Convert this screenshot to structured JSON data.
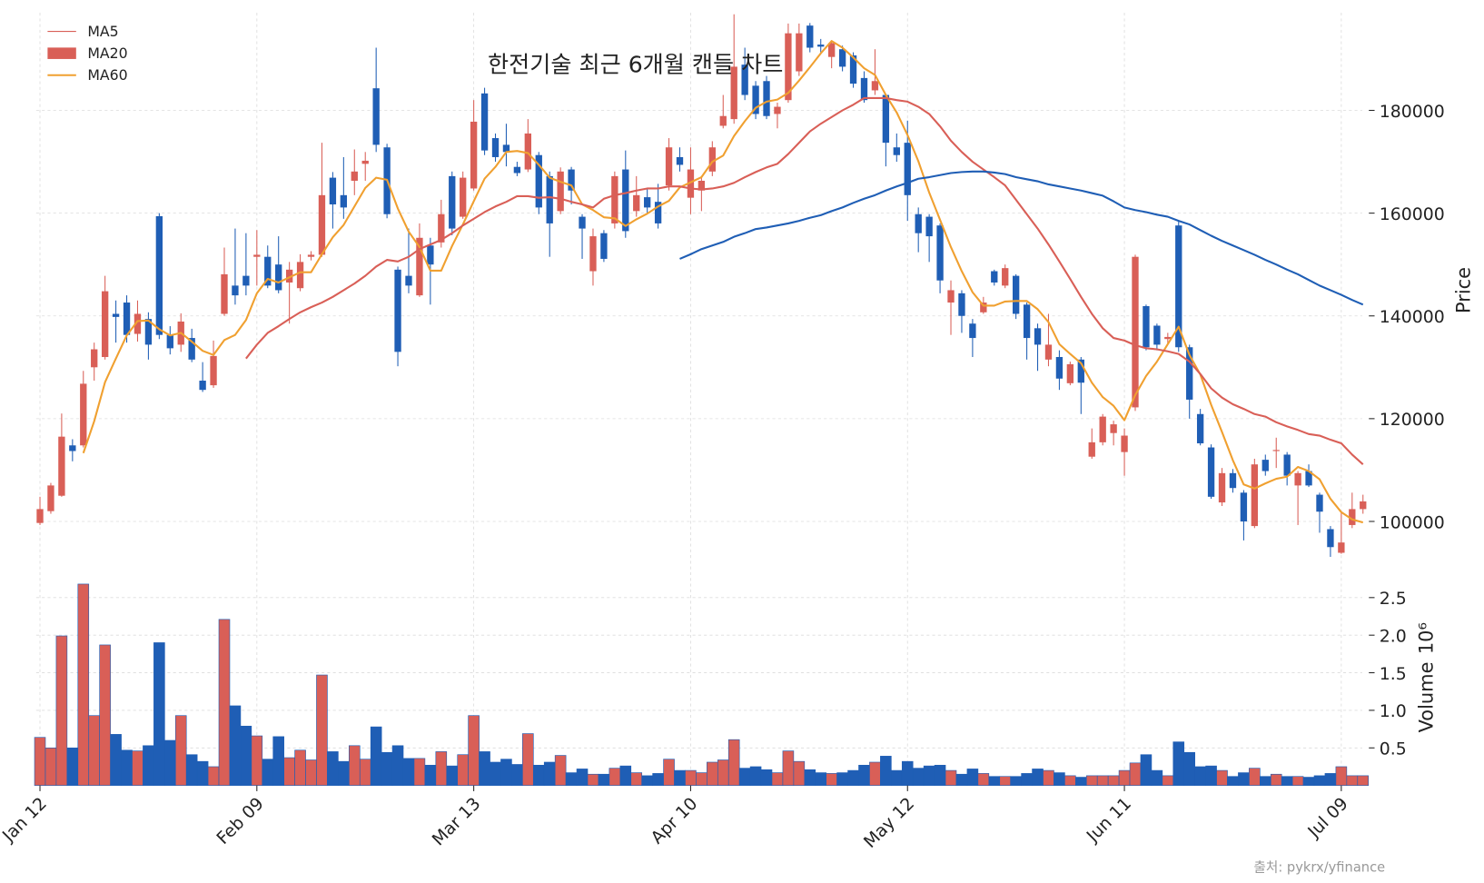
{
  "chart_data": {
    "type": "candlestick",
    "title": "한전기술 최근 6개월 캔들 차트",
    "source_note": "출처: pykrx/yfinance",
    "categories": [
      "Jan 12",
      null,
      null,
      null,
      null,
      null,
      null,
      null,
      null,
      null,
      null,
      null,
      null,
      null,
      null,
      null,
      null,
      null,
      null,
      null,
      "Feb 09",
      null,
      null,
      null,
      null,
      null,
      null,
      null,
      null,
      null,
      null,
      null,
      null,
      null,
      null,
      null,
      null,
      null,
      null,
      null,
      "Mar 13",
      null,
      null,
      null,
      null,
      null,
      null,
      null,
      null,
      null,
      null,
      null,
      null,
      null,
      null,
      null,
      null,
      null,
      null,
      null,
      "Apr 10",
      null,
      null,
      null,
      null,
      null,
      null,
      null,
      null,
      null,
      null,
      null,
      null,
      null,
      null,
      null,
      null,
      null,
      null,
      null,
      "May 12",
      null,
      null,
      null,
      null,
      null,
      null,
      null,
      null,
      null,
      null,
      null,
      null,
      null,
      null,
      null,
      null,
      null,
      null,
      null,
      "Jun 11",
      null,
      null,
      null,
      null,
      null,
      null,
      null,
      null,
      null,
      null,
      null,
      null,
      null,
      null,
      null,
      null,
      null,
      null,
      null,
      "Jul 09",
      null,
      null
    ],
    "open": [
      99700,
      102000,
      105000,
      114800,
      114800,
      130000,
      132000,
      140400,
      142600,
      136500,
      139400,
      159400,
      136300,
      134400,
      135700,
      127400,
      126500,
      140400,
      145900,
      147800,
      151500,
      151500,
      150000,
      146500,
      145400,
      151500,
      151900,
      166900,
      163500,
      166300,
      169600,
      184300,
      172800,
      149000,
      147800,
      144000,
      153700,
      154300,
      167200,
      159300,
      164800,
      183300,
      174600,
      173300,
      169000,
      168500,
      171300,
      167200,
      160400,
      168500,
      159300,
      148700,
      156100,
      158000,
      168500,
      160400,
      163100,
      162200,
      165400,
      170900,
      163000,
      164400,
      168100,
      177000,
      178300,
      188900,
      184800,
      185700,
      179300,
      182000,
      187600,
      196500,
      192800,
      190400,
      191900,
      190700,
      186300,
      183900,
      183000,
      172800,
      173700,
      159800,
      159300,
      157600,
      142600,
      144400,
      138500,
      140700,
      148700,
      145900,
      147800,
      142200,
      137600,
      131500,
      132000,
      126900,
      131500,
      112600,
      115400,
      117200,
      113500,
      122200,
      141900,
      138100,
      135500,
      157600,
      133900,
      120900,
      114400,
      103700,
      109400,
      105600,
      99100,
      112000,
      113700,
      113000,
      107000,
      109800,
      105200,
      98500,
      93900,
      99300,
      102400
    ],
    "high": [
      104800,
      107500,
      121000,
      116000,
      129300,
      134800,
      147800,
      143000,
      144000,
      143000,
      140700,
      160000,
      138000,
      140500,
      137500,
      131000,
      135200,
      153300,
      157000,
      156100,
      156700,
      153700,
      155500,
      150500,
      152000,
      152600,
      173700,
      168000,
      170900,
      172400,
      171900,
      192200,
      173500,
      149600,
      157000,
      158000,
      155200,
      162600,
      168100,
      168100,
      182000,
      184400,
      175500,
      177400,
      170000,
      178300,
      171900,
      168100,
      168900,
      169000,
      159800,
      157000,
      156700,
      168100,
      172200,
      167200,
      164800,
      165700,
      174600,
      172800,
      172800,
      167200,
      174000,
      183000,
      198700,
      192200,
      185700,
      186700,
      181500,
      196900,
      196900,
      197000,
      193900,
      193500,
      192600,
      191300,
      187600,
      191900,
      183000,
      175500,
      178000,
      161100,
      159800,
      158000,
      146900,
      145000,
      139400,
      143700,
      149000,
      150000,
      148100,
      142600,
      138500,
      140400,
      133300,
      131100,
      132000,
      118100,
      120900,
      119600,
      118100,
      151900,
      142200,
      138500,
      136700,
      158500,
      134400,
      121900,
      115000,
      110400,
      110200,
      106100,
      112200,
      113000,
      116300,
      113500,
      109800,
      111100,
      105600,
      99100,
      101900,
      105600,
      105200
    ],
    "low": [
      99300,
      101500,
      104800,
      111700,
      114400,
      127400,
      131500,
      134800,
      134800,
      135000,
      131500,
      135500,
      132500,
      133000,
      131000,
      125200,
      126000,
      140000,
      142200,
      144000,
      145900,
      145400,
      144400,
      138500,
      144800,
      150800,
      151500,
      157000,
      158900,
      163500,
      166300,
      171900,
      159000,
      130200,
      144400,
      143700,
      142200,
      153300,
      155700,
      158900,
      164400,
      171300,
      170000,
      169100,
      167200,
      168000,
      159800,
      151500,
      159800,
      161700,
      151100,
      145900,
      150500,
      157000,
      155200,
      159300,
      159800,
      157000,
      164400,
      168100,
      159800,
      160400,
      167200,
      176500,
      177400,
      182000,
      178300,
      178300,
      176500,
      181500,
      186700,
      191300,
      191300,
      188200,
      187600,
      184400,
      181500,
      183000,
      169100,
      170000,
      158500,
      152400,
      150500,
      144400,
      136300,
      136700,
      132000,
      140400,
      145900,
      145400,
      139400,
      131500,
      129300,
      130200,
      125600,
      126500,
      120900,
      112200,
      114800,
      114800,
      108900,
      121500,
      133300,
      133300,
      134400,
      133000,
      120000,
      114800,
      104400,
      103000,
      105600,
      96300,
      98700,
      108900,
      110400,
      107000,
      99300,
      106700,
      97800,
      93100,
      93700,
      98700,
      101500
    ],
    "close": [
      102400,
      107000,
      116500,
      113700,
      126800,
      133500,
      144800,
      139800,
      136300,
      140400,
      134400,
      136300,
      133700,
      138900,
      131500,
      125600,
      132200,
      148100,
      144000,
      145900,
      151900,
      145900,
      145000,
      149000,
      150500,
      151900,
      163500,
      161700,
      161100,
      168100,
      170200,
      173300,
      159800,
      133000,
      145900,
      155200,
      150000,
      159800,
      157000,
      166900,
      177800,
      172200,
      170900,
      171900,
      167800,
      175500,
      161100,
      158000,
      168100,
      164400,
      157000,
      155500,
      151100,
      167200,
      156500,
      163500,
      161100,
      158000,
      172800,
      169400,
      168500,
      166300,
      172800,
      178900,
      188500,
      183000,
      179300,
      178900,
      180700,
      195000,
      195000,
      192200,
      192400,
      193100,
      188500,
      185200,
      182000,
      185700,
      173700,
      171300,
      163500,
      156100,
      155500,
      146900,
      145000,
      140000,
      135700,
      142600,
      146500,
      149300,
      140400,
      135700,
      134400,
      134400,
      127800,
      130600,
      127000,
      115400,
      120400,
      118900,
      116700,
      151500,
      133900,
      134400,
      135900,
      133900,
      123700,
      115200,
      104800,
      109400,
      106500,
      100000,
      111100,
      109800,
      113900,
      108900,
      109400,
      107000,
      101900,
      95000,
      95900,
      102400,
      103900
    ],
    "up_color": "#d95f57",
    "down_color": "#1f5eb5",
    "ylabel": "Price",
    "ylim": [
      92000,
      199000
    ],
    "yticks": [
      100000,
      120000,
      140000,
      160000,
      180000
    ],
    "grid": true,
    "legend": "upper left",
    "series": [
      {
        "name": "MA5",
        "color": "#f0a030",
        "legend_color": "#d95f57",
        "legend_mark": "line",
        "width": 2,
        "values": [
          null,
          null,
          null,
          null,
          113300,
          119500,
          127100,
          131700,
          136200,
          139000,
          139100,
          137400,
          136200,
          136700,
          135000,
          133200,
          132400,
          135300,
          136300,
          139200,
          144400,
          147200,
          146500,
          147500,
          148500,
          148500,
          152000,
          155300,
          157700,
          161300,
          164900,
          166900,
          166500,
          160900,
          156400,
          153400,
          148800,
          148800,
          153600,
          157800,
          162300,
          166700,
          169000,
          171900,
          172100,
          171700,
          169400,
          166900,
          166100,
          165400,
          161700,
          160600,
          159200,
          159000,
          157500,
          158800,
          159900,
          161300,
          162400,
          165000,
          166000,
          167000,
          170000,
          171200,
          175000,
          177900,
          180500,
          181700,
          182100,
          183400,
          185800,
          188400,
          191100,
          193500,
          192200,
          190300,
          188200,
          186900,
          183000,
          179600,
          175200,
          170100,
          164000,
          158700,
          153400,
          148700,
          144600,
          142000,
          142000,
          142800,
          142900,
          142900,
          141300,
          138800,
          134500,
          132600,
          130800,
          127000,
          124200,
          122500,
          119700,
          124600,
          128300,
          131100,
          134500,
          137900,
          132400,
          128600,
          122700,
          117400,
          111900,
          107200,
          106400,
          107400,
          108300,
          108700,
          110600,
          109800,
          108200,
          104400,
          101800,
          100400,
          99800
        ]
      },
      {
        "name": "MA20",
        "color": "#d95f57",
        "legend_color": "#d95f57",
        "legend_mark": "patch",
        "width": 2,
        "values": [
          null,
          null,
          null,
          null,
          null,
          null,
          null,
          null,
          null,
          null,
          null,
          null,
          null,
          null,
          null,
          null,
          null,
          null,
          null,
          131700,
          134400,
          136700,
          138000,
          139400,
          140700,
          141700,
          142600,
          143700,
          145000,
          146300,
          147800,
          149600,
          150900,
          150600,
          151500,
          153000,
          153900,
          154800,
          156100,
          157600,
          158900,
          160200,
          161300,
          162200,
          163300,
          163300,
          163000,
          163100,
          162800,
          162200,
          161700,
          161100,
          162800,
          163500,
          163900,
          164400,
          164800,
          164800,
          165200,
          165200,
          164800,
          164600,
          164800,
          165200,
          165900,
          167000,
          168000,
          168900,
          169600,
          171500,
          173700,
          175900,
          177400,
          178700,
          180000,
          181100,
          182400,
          182400,
          182400,
          182000,
          181700,
          180700,
          179300,
          176900,
          174100,
          171900,
          170000,
          168500,
          167000,
          165400,
          162600,
          159800,
          157000,
          153900,
          150600,
          147200,
          143700,
          140400,
          137600,
          135700,
          135200,
          134300,
          133700,
          133500,
          133100,
          132600,
          131100,
          128700,
          125900,
          124100,
          122800,
          121900,
          120900,
          120400,
          119300,
          118500,
          117800,
          117000,
          116700,
          115900,
          115200,
          113000,
          111100
        ]
      },
      {
        "name": "MA60",
        "color": "#1f5eb5",
        "legend_color": "#f0a030",
        "legend_mark": "line",
        "width": 2,
        "values": [
          null,
          null,
          null,
          null,
          null,
          null,
          null,
          null,
          null,
          null,
          null,
          null,
          null,
          null,
          null,
          null,
          null,
          null,
          null,
          null,
          null,
          null,
          null,
          null,
          null,
          null,
          null,
          null,
          null,
          null,
          null,
          null,
          null,
          null,
          null,
          null,
          null,
          null,
          null,
          null,
          null,
          null,
          null,
          null,
          null,
          null,
          null,
          null,
          null,
          null,
          null,
          null,
          null,
          null,
          null,
          null,
          null,
          null,
          null,
          151100,
          152000,
          153000,
          153700,
          154400,
          155400,
          156100,
          156900,
          157200,
          157600,
          158000,
          158500,
          159100,
          159600,
          160400,
          161100,
          162000,
          162800,
          163500,
          164400,
          165200,
          165900,
          166700,
          167000,
          167400,
          167800,
          168000,
          168100,
          168100,
          167900,
          167600,
          167000,
          166600,
          166200,
          165600,
          165200,
          164800,
          164400,
          163900,
          163400,
          162300,
          161100,
          160600,
          160200,
          159700,
          159300,
          158500,
          157800,
          156700,
          155600,
          154600,
          153700,
          152800,
          151900,
          150900,
          150000,
          149000,
          148100,
          147000,
          145900,
          145000,
          144100,
          143100,
          142200
        ]
      }
    ],
    "volume": {
      "label": "Volume",
      "multiplier": "10⁶",
      "ylim": [
        0,
        2.75
      ],
      "yticks": [
        0.5,
        {
          "value": 1,
          "label": "1.0"
        },
        1.5,
        {
          "value": 2,
          "label": "2.0"
        },
        2.5
      ],
      "values": [
        0.64,
        0.5,
        1.99,
        0.5,
        2.68,
        0.93,
        1.87,
        0.68,
        0.47,
        0.46,
        0.53,
        1.9,
        0.6,
        0.93,
        0.41,
        0.32,
        0.25,
        2.21,
        1.06,
        0.79,
        0.66,
        0.35,
        0.65,
        0.37,
        0.47,
        0.34,
        1.47,
        0.45,
        0.32,
        0.53,
        0.35,
        0.78,
        0.44,
        0.53,
        0.36,
        0.36,
        0.27,
        0.45,
        0.26,
        0.41,
        0.93,
        0.45,
        0.31,
        0.35,
        0.28,
        0.69,
        0.27,
        0.31,
        0.4,
        0.17,
        0.22,
        0.15,
        0.15,
        0.23,
        0.26,
        0.17,
        0.13,
        0.16,
        0.35,
        0.2,
        0.2,
        0.17,
        0.31,
        0.34,
        0.61,
        0.23,
        0.25,
        0.21,
        0.17,
        0.46,
        0.32,
        0.21,
        0.17,
        0.16,
        0.17,
        0.2,
        0.27,
        0.31,
        0.39,
        0.2,
        0.32,
        0.23,
        0.26,
        0.27,
        0.2,
        0.15,
        0.22,
        0.16,
        0.12,
        0.12,
        0.12,
        0.16,
        0.22,
        0.2,
        0.17,
        0.13,
        0.11,
        0.13,
        0.13,
        0.13,
        0.2,
        0.3,
        0.41,
        0.2,
        0.13,
        0.58,
        0.44,
        0.25,
        0.26,
        0.2,
        0.12,
        0.17,
        0.23,
        0.12,
        0.15,
        0.12,
        0.12,
        0.11,
        0.13,
        0.16,
        0.25,
        0.13,
        0.13
      ]
    }
  }
}
